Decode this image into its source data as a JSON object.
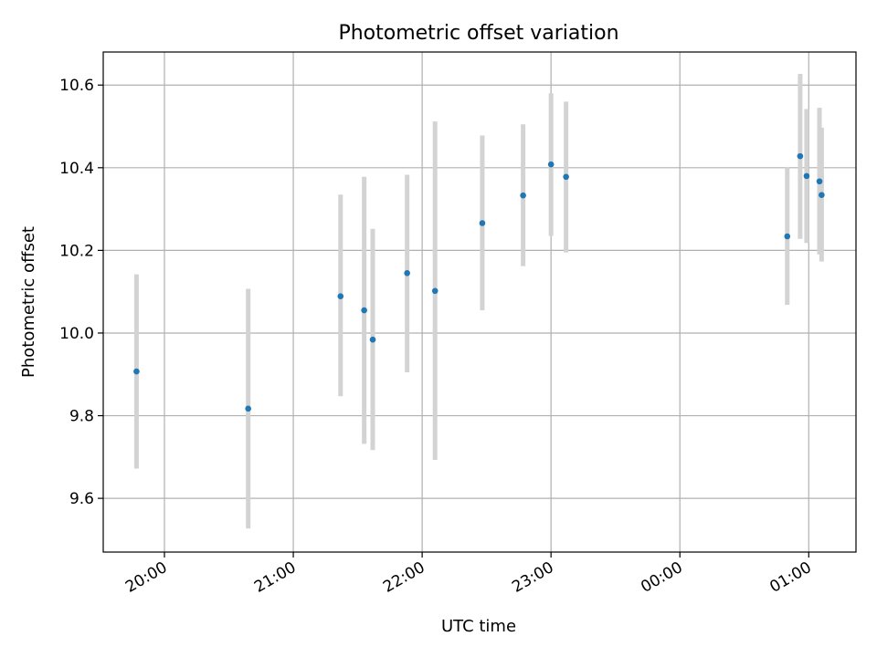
{
  "chart_data": {
    "type": "scatter",
    "title": "Photometric offset variation",
    "xlabel": "UTC time",
    "ylabel": "Photometric offset",
    "xlim": [
      "19:31:30",
      "25:22:00"
    ],
    "ylim": [
      9.47,
      10.68
    ],
    "grid": true,
    "x_ticks": [
      {
        "label": "20:00",
        "value": "20:00"
      },
      {
        "label": "21:00",
        "value": "21:00"
      },
      {
        "label": "22:00",
        "value": "22:00"
      },
      {
        "label": "23:00",
        "value": "23:00"
      },
      {
        "label": "00:00",
        "value": "24:00"
      },
      {
        "label": "01:00",
        "value": "25:00"
      }
    ],
    "y_ticks": [
      {
        "label": "9.6",
        "value": 9.6
      },
      {
        "label": "9.8",
        "value": 9.8
      },
      {
        "label": "10.0",
        "value": 10.0
      },
      {
        "label": "10.2",
        "value": 10.2
      },
      {
        "label": "10.4",
        "value": 10.4
      },
      {
        "label": "10.6",
        "value": 10.6
      }
    ],
    "series": [
      {
        "marker_color": "#1f77b4",
        "errorbar_color": "#d3d3d3",
        "points": [
          {
            "x": "19:47",
            "y": 9.907,
            "ylow": 9.672,
            "yhigh": 10.142
          },
          {
            "x": "20:39",
            "y": 9.817,
            "ylow": 9.527,
            "yhigh": 10.107
          },
          {
            "x": "21:22",
            "y": 10.089,
            "ylow": 9.847,
            "yhigh": 10.335
          },
          {
            "x": "21:33",
            "y": 10.055,
            "ylow": 9.732,
            "yhigh": 10.378
          },
          {
            "x": "21:37",
            "y": 9.984,
            "ylow": 9.717,
            "yhigh": 10.252
          },
          {
            "x": "21:53",
            "y": 10.145,
            "ylow": 9.905,
            "yhigh": 10.383
          },
          {
            "x": "22:06",
            "y": 10.102,
            "ylow": 9.693,
            "yhigh": 10.512
          },
          {
            "x": "22:28",
            "y": 10.266,
            "ylow": 10.055,
            "yhigh": 10.478
          },
          {
            "x": "22:47",
            "y": 10.333,
            "ylow": 10.162,
            "yhigh": 10.505
          },
          {
            "x": "23:00",
            "y": 10.408,
            "ylow": 10.235,
            "yhigh": 10.58
          },
          {
            "x": "23:07",
            "y": 10.378,
            "ylow": 10.195,
            "yhigh": 10.56
          },
          {
            "x": "24:50",
            "y": 10.234,
            "ylow": 10.068,
            "yhigh": 10.402
          },
          {
            "x": "24:56",
            "y": 10.428,
            "ylow": 10.228,
            "yhigh": 10.627
          },
          {
            "x": "24:59",
            "y": 10.38,
            "ylow": 10.218,
            "yhigh": 10.542
          },
          {
            "x": "25:05",
            "y": 10.367,
            "ylow": 10.19,
            "yhigh": 10.545
          },
          {
            "x": "25:06",
            "y": 10.334,
            "ylow": 10.173,
            "yhigh": 10.497
          }
        ]
      }
    ]
  }
}
